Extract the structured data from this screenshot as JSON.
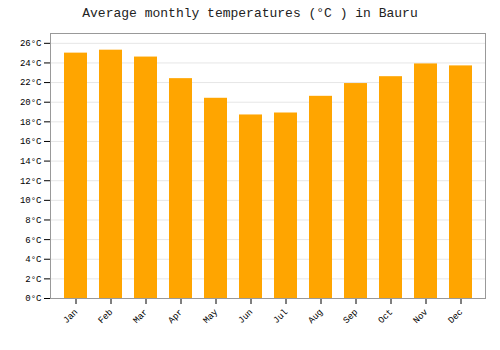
{
  "chart_data": {
    "type": "bar",
    "title": "Average monthly temperatures (°C ) in Bauru",
    "categories": [
      "Jan",
      "Feb",
      "Mar",
      "Apr",
      "May",
      "Jun",
      "Jul",
      "Aug",
      "Sep",
      "Oct",
      "Nov",
      "Dec"
    ],
    "values": [
      25.0,
      25.3,
      24.6,
      22.4,
      20.4,
      18.7,
      18.9,
      20.6,
      21.9,
      22.6,
      23.9,
      23.7
    ],
    "color": "#FFA500",
    "ylim": [
      0,
      27
    ],
    "yticks": [
      {
        "value": 0,
        "label": "0°C"
      },
      {
        "value": 2,
        "label": "2°C"
      },
      {
        "value": 4,
        "label": "4°C"
      },
      {
        "value": 6,
        "label": "6°C"
      },
      {
        "value": 8,
        "label": "8°C"
      },
      {
        "value": 10,
        "label": "10°C"
      },
      {
        "value": 12,
        "label": "12°C"
      },
      {
        "value": 14,
        "label": "14°C"
      },
      {
        "value": 16,
        "label": "16°C"
      },
      {
        "value": 18,
        "label": "18°C"
      },
      {
        "value": 20,
        "label": "20°C"
      },
      {
        "value": 22,
        "label": "22°C"
      },
      {
        "value": 24,
        "label": "24°C"
      },
      {
        "value": 26,
        "label": "26°C"
      }
    ],
    "grid": true
  }
}
